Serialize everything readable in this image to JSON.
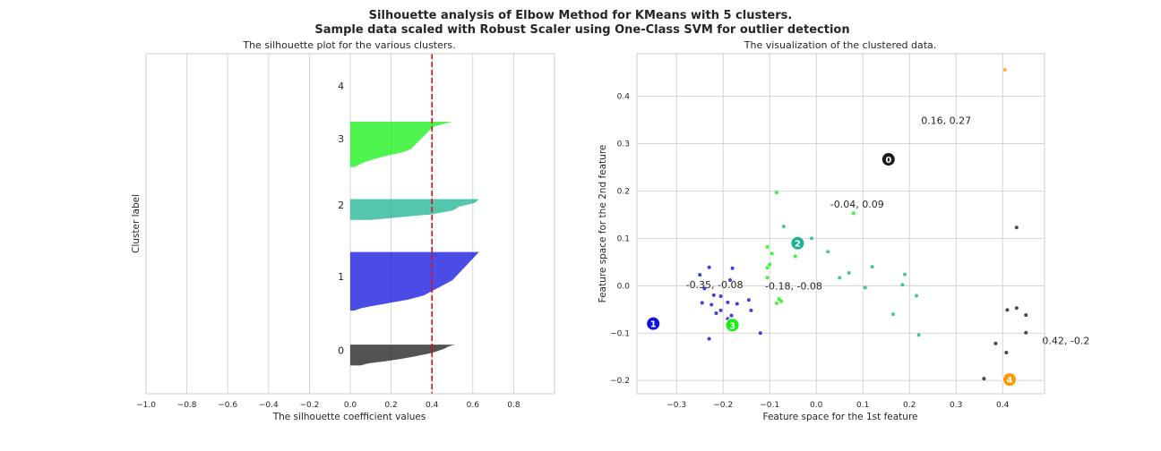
{
  "suptitle": {
    "line1": "Silhouette analysis of Elbow Method for KMeans with 5 clusters.",
    "line2": "Sample data scaled with Robust Scaler using One-Class SVM for outlier detection"
  },
  "colors": {
    "cluster0": "#1a1a1a",
    "cluster1": "#0f0fdc",
    "cluster2": "#1ab391",
    "cluster3": "#14f014",
    "cluster4": "#ff9900",
    "avg_line": "#dd1111",
    "grid": "#cccccc"
  },
  "chart_data": [
    {
      "type": "area",
      "title": "The silhouette plot for the various clusters.",
      "xlabel": "The silhouette coefficient values",
      "ylabel": "Cluster label",
      "xlim": [
        -1.0,
        1.0
      ],
      "ylim": [
        0,
        180
      ],
      "xticks": [
        "−1.0",
        "−0.8",
        "−0.6",
        "−0.4",
        "−0.2",
        "0.0",
        "0.2",
        "0.4",
        "0.6",
        "0.8"
      ],
      "xtick_values": [
        -1.0,
        -0.8,
        -0.6,
        -0.4,
        -0.2,
        0.0,
        0.2,
        0.4,
        0.6,
        0.8
      ],
      "grid": "vertical",
      "average_silhouette": 0.4,
      "clusters": [
        {
          "label": "0",
          "y_lower": 15,
          "y_upper": 26,
          "label_y": 23,
          "values": [
            0.51,
            0.48,
            0.46,
            0.43,
            0.4,
            0.35,
            0.3,
            0.24,
            0.17,
            0.09,
            0.05
          ]
        },
        {
          "label": "1",
          "y_lower": 44,
          "y_upper": 75,
          "label_y": 62,
          "values": [
            0.63,
            0.62,
            0.61,
            0.6,
            0.59,
            0.58,
            0.57,
            0.56,
            0.55,
            0.54,
            0.53,
            0.52,
            0.51,
            0.5,
            0.48,
            0.46,
            0.44,
            0.42,
            0.4,
            0.38,
            0.36,
            0.32,
            0.28,
            0.22,
            0.16,
            0.1,
            0.05,
            0.02
          ]
        },
        {
          "label": "2",
          "y_lower": 92,
          "y_upper": 103,
          "label_y": 100,
          "values": [
            0.63,
            0.62,
            0.61,
            0.57,
            0.53,
            0.52,
            0.5,
            0.45,
            0.4,
            0.3,
            0.2,
            0.1
          ]
        },
        {
          "label": "3",
          "y_lower": 120,
          "y_upper": 144,
          "label_y": 135,
          "values": [
            0.5,
            0.46,
            0.42,
            0.4,
            0.39,
            0.38,
            0.37,
            0.36,
            0.35,
            0.34,
            0.33,
            0.32,
            0.31,
            0.3,
            0.28,
            0.25,
            0.2,
            0.16,
            0.12,
            0.09,
            0.06,
            0.04,
            0.02
          ]
        },
        {
          "label": "4",
          "y_lower": 162,
          "y_upper": 162,
          "label_y": 163,
          "values": []
        }
      ]
    },
    {
      "type": "scatter",
      "title": "The visualization of the clustered data.",
      "xlabel": "Feature space for the 1st feature",
      "ylabel": "Feature space for the 2nd feature",
      "xlim": [
        -0.385,
        0.49
      ],
      "ylim": [
        -0.228,
        0.49
      ],
      "xticks": [
        "−0.3",
        "−0.2",
        "−0.1",
        "0.0",
        "0.1",
        "0.2",
        "0.3",
        "0.4"
      ],
      "xtick_values": [
        -0.3,
        -0.2,
        -0.1,
        0.0,
        0.1,
        0.2,
        0.3,
        0.4
      ],
      "yticks": [
        "−0.2",
        "−0.1",
        "0.0",
        "0.1",
        "0.2",
        "0.3",
        "0.4"
      ],
      "ytick_values": [
        -0.2,
        -0.1,
        0.0,
        0.1,
        0.2,
        0.3,
        0.4
      ],
      "grid": "both",
      "points": [
        {
          "c": 0,
          "x": 0.43,
          "y": 0.123
        },
        {
          "c": 0,
          "x": 0.43,
          "y": -0.047
        },
        {
          "c": 0,
          "x": 0.41,
          "y": -0.051
        },
        {
          "c": 0,
          "x": 0.45,
          "y": -0.062
        },
        {
          "c": 0,
          "x": 0.45,
          "y": -0.099
        },
        {
          "c": 0,
          "x": 0.385,
          "y": -0.122
        },
        {
          "c": 0,
          "x": 0.408,
          "y": -0.141
        },
        {
          "c": 0,
          "x": 0.36,
          "y": -0.196
        },
        {
          "c": 1,
          "x": -0.25,
          "y": 0.023
        },
        {
          "c": 1,
          "x": -0.23,
          "y": 0.039
        },
        {
          "c": 1,
          "x": -0.18,
          "y": 0.037
        },
        {
          "c": 1,
          "x": -0.24,
          "y": -0.006
        },
        {
          "c": 1,
          "x": -0.22,
          "y": -0.02
        },
        {
          "c": 1,
          "x": -0.205,
          "y": -0.022
        },
        {
          "c": 1,
          "x": -0.185,
          "y": 0.012
        },
        {
          "c": 1,
          "x": -0.245,
          "y": -0.036
        },
        {
          "c": 1,
          "x": -0.225,
          "y": -0.04
        },
        {
          "c": 1,
          "x": -0.19,
          "y": -0.035
        },
        {
          "c": 1,
          "x": -0.17,
          "y": -0.038
        },
        {
          "c": 1,
          "x": -0.145,
          "y": -0.03
        },
        {
          "c": 1,
          "x": -0.215,
          "y": -0.058
        },
        {
          "c": 1,
          "x": -0.205,
          "y": -0.052
        },
        {
          "c": 1,
          "x": -0.182,
          "y": -0.063
        },
        {
          "c": 1,
          "x": -0.14,
          "y": -0.052
        },
        {
          "c": 1,
          "x": -0.19,
          "y": -0.07
        },
        {
          "c": 1,
          "x": -0.12,
          "y": -0.1
        },
        {
          "c": 1,
          "x": -0.23,
          "y": -0.112
        },
        {
          "c": 2,
          "x": -0.07,
          "y": 0.125
        },
        {
          "c": 2,
          "x": -0.01,
          "y": 0.1
        },
        {
          "c": 2,
          "x": 0.025,
          "y": 0.072
        },
        {
          "c": 2,
          "x": 0.07,
          "y": 0.027
        },
        {
          "c": 2,
          "x": 0.05,
          "y": 0.017
        },
        {
          "c": 2,
          "x": 0.12,
          "y": 0.04
        },
        {
          "c": 2,
          "x": 0.19,
          "y": 0.024
        },
        {
          "c": 2,
          "x": 0.185,
          "y": 0.002
        },
        {
          "c": 2,
          "x": 0.105,
          "y": -0.004
        },
        {
          "c": 2,
          "x": 0.215,
          "y": -0.021
        },
        {
          "c": 2,
          "x": 0.165,
          "y": -0.06
        },
        {
          "c": 2,
          "x": 0.22,
          "y": -0.104
        },
        {
          "c": 3,
          "x": -0.085,
          "y": 0.197
        },
        {
          "c": 3,
          "x": 0.08,
          "y": 0.153
        },
        {
          "c": 3,
          "x": -0.105,
          "y": 0.082
        },
        {
          "c": 3,
          "x": -0.095,
          "y": 0.068
        },
        {
          "c": 3,
          "x": -0.045,
          "y": 0.062
        },
        {
          "c": 3,
          "x": -0.1,
          "y": 0.045
        },
        {
          "c": 3,
          "x": -0.105,
          "y": 0.038
        },
        {
          "c": 3,
          "x": -0.105,
          "y": 0.017
        },
        {
          "c": 3,
          "x": -0.08,
          "y": -0.028
        },
        {
          "c": 3,
          "x": -0.075,
          "y": -0.033
        },
        {
          "c": 3,
          "x": -0.085,
          "y": -0.037
        },
        {
          "c": 4,
          "x": 0.405,
          "y": 0.456
        }
      ],
      "centers": [
        {
          "label": "0",
          "c": 0,
          "x": 0.155,
          "y": 0.267,
          "annotation": "0.16, 0.27",
          "dx": 0.07,
          "dy": 0.075
        },
        {
          "label": "1",
          "c": 1,
          "x": -0.35,
          "y": -0.08,
          "annotation": "-0.35, -0.08",
          "dx": 0.07,
          "dy": 0.075
        },
        {
          "label": "2",
          "c": 2,
          "x": -0.04,
          "y": 0.09,
          "annotation": "-0.04, 0.09",
          "dx": 0.07,
          "dy": 0.075
        },
        {
          "label": "3",
          "c": 3,
          "x": -0.18,
          "y": -0.083,
          "annotation": "-0.18, -0.08",
          "dx": 0.07,
          "dy": 0.075
        },
        {
          "label": "4",
          "c": 4,
          "x": 0.415,
          "y": -0.198,
          "annotation": "0.42, -0.2",
          "dx": 0.07,
          "dy": 0.075
        }
      ]
    }
  ]
}
